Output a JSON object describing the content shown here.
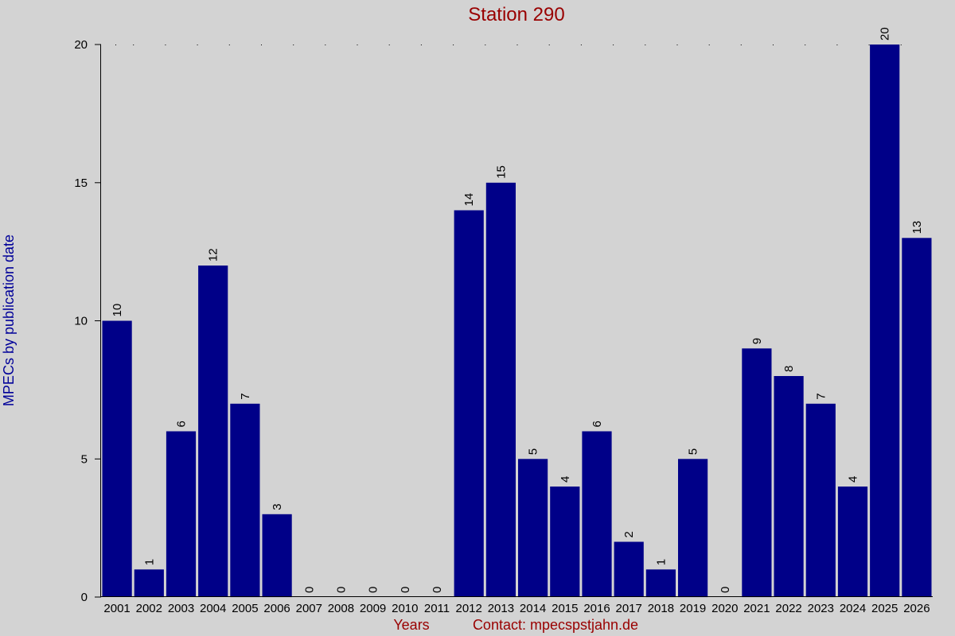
{
  "chart_data": {
    "type": "bar",
    "title": "Station 290",
    "ylabel": "MPECs by publication date",
    "xlabel": "Years",
    "contact": "Contact: mpecspstjahn.de",
    "categories": [
      "2001",
      "2002",
      "2003",
      "2004",
      "2005",
      "2006",
      "2007",
      "2008",
      "2009",
      "2010",
      "2011",
      "2012",
      "2013",
      "2014",
      "2015",
      "2016",
      "2017",
      "2018",
      "2019",
      "2020",
      "2021",
      "2022",
      "2023",
      "2024",
      "2025",
      "2026"
    ],
    "values": [
      10,
      1,
      6,
      12,
      7,
      3,
      0,
      0,
      0,
      0,
      0,
      14,
      15,
      5,
      4,
      6,
      2,
      1,
      5,
      0,
      9,
      8,
      7,
      4,
      20,
      13
    ],
    "ylim": [
      0,
      20
    ],
    "yticks": [
      0,
      5,
      10,
      15,
      20
    ],
    "bar_color": "#000088",
    "background": "#d3d3d3",
    "title_color": "#990000",
    "ylabel_color": "#000099",
    "grid": "dotted line at top"
  }
}
